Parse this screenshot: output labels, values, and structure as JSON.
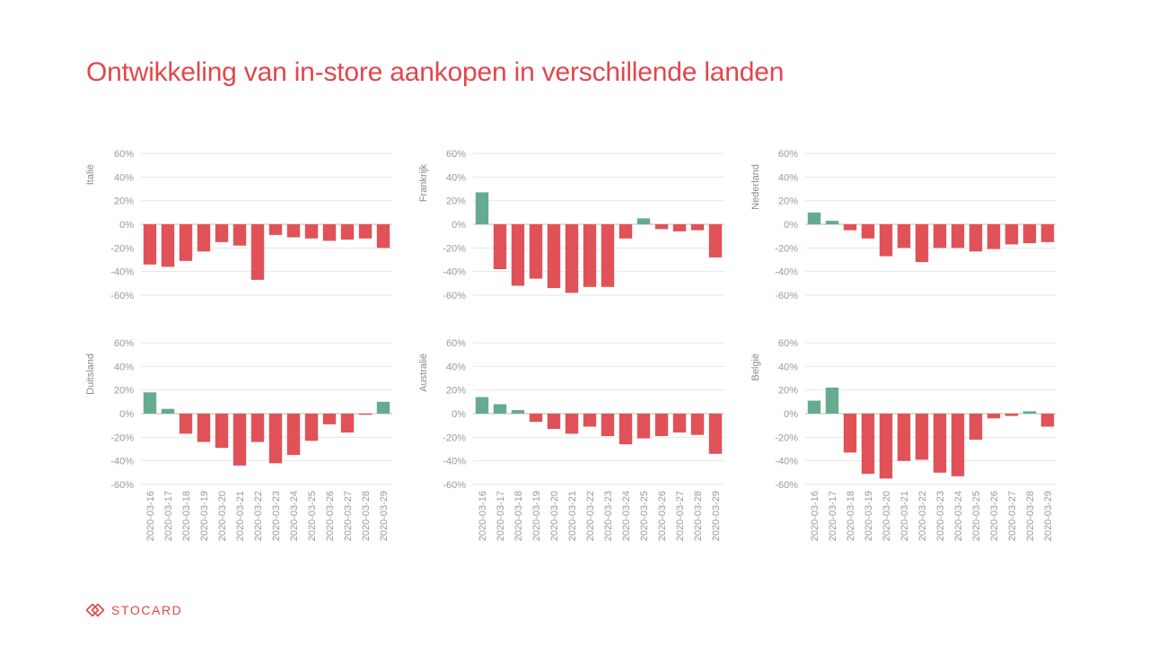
{
  "title": "Ontwikkeling van in-store aankopen in verschillende landen",
  "logo": {
    "text": "STOCARD",
    "icon": "stocard-logo-icon"
  },
  "colors": {
    "positive": "#66ab8f",
    "negative": "#e05257",
    "title": "#e0474c",
    "grid": "#e6e6e6",
    "axis_text": "#9a9a9a"
  },
  "chart_data": [
    {
      "type": "bar",
      "ylabel": "Italië",
      "categories": [
        "2020-03-16",
        "2020-03-17",
        "2020-03-18",
        "2020-03-19",
        "2020-03-20",
        "2020-03-21",
        "2020-03-22",
        "2020-03-23",
        "2020-03-24",
        "2020-03-25",
        "2020-03-26",
        "2020-03-27",
        "2020-03-28",
        "2020-03-29"
      ],
      "values": [
        -34,
        -36,
        -31,
        -23,
        -15,
        -18,
        -47,
        -9,
        -11,
        -12,
        -14,
        -13,
        -12,
        -20
      ],
      "ylim": [
        -60,
        60
      ],
      "yticks": [
        "60%",
        "40%",
        "20%",
        "0%",
        "-20%",
        "-40%",
        "-60%"
      ],
      "show_xticks": false
    },
    {
      "type": "bar",
      "ylabel": "Frankrijk",
      "categories": [
        "2020-03-16",
        "2020-03-17",
        "2020-03-18",
        "2020-03-19",
        "2020-03-20",
        "2020-03-21",
        "2020-03-22",
        "2020-03-23",
        "2020-03-24",
        "2020-03-25",
        "2020-03-26",
        "2020-03-27",
        "2020-03-28",
        "2020-03-29"
      ],
      "values": [
        27,
        -38,
        -52,
        -46,
        -54,
        -58,
        -53,
        -53,
        -12,
        5,
        -4,
        -6,
        -5,
        -28
      ],
      "ylim": [
        -60,
        60
      ],
      "yticks": [
        "60%",
        "40%",
        "20%",
        "0%",
        "-20%",
        "-40%",
        "-60%"
      ],
      "show_xticks": false
    },
    {
      "type": "bar",
      "ylabel": "Nederland",
      "categories": [
        "2020-03-16",
        "2020-03-17",
        "2020-03-18",
        "2020-03-19",
        "2020-03-20",
        "2020-03-21",
        "2020-03-22",
        "2020-03-23",
        "2020-03-24",
        "2020-03-25",
        "2020-03-26",
        "2020-03-27",
        "2020-03-28",
        "2020-03-29"
      ],
      "values": [
        10,
        3,
        -5,
        -12,
        -27,
        -20,
        -32,
        -20,
        -20,
        -23,
        -21,
        -17,
        -16,
        -15
      ],
      "ylim": [
        -60,
        60
      ],
      "yticks": [
        "60%",
        "40%",
        "20%",
        "0%",
        "-20%",
        "-40%",
        "-60%"
      ],
      "show_xticks": false
    },
    {
      "type": "bar",
      "ylabel": "Duitsland",
      "categories": [
        "2020-03-16",
        "2020-03-17",
        "2020-03-18",
        "2020-03-19",
        "2020-03-20",
        "2020-03-21",
        "2020-03-22",
        "2020-03-23",
        "2020-03-24",
        "2020-03-25",
        "2020-03-26",
        "2020-03-27",
        "2020-03-28",
        "2020-03-29"
      ],
      "values": [
        18,
        4,
        -17,
        -24,
        -29,
        -44,
        -24,
        -42,
        -35,
        -23,
        -9,
        -16,
        -1,
        10
      ],
      "ylim": [
        -60,
        60
      ],
      "yticks": [
        "60%",
        "40%",
        "20%",
        "0%",
        "-20%",
        "-40%",
        "-60%"
      ],
      "show_xticks": true
    },
    {
      "type": "bar",
      "ylabel": "Australië",
      "categories": [
        "2020-03-16",
        "2020-03-17",
        "2020-03-18",
        "2020-03-19",
        "2020-03-20",
        "2020-03-21",
        "2020-03-22",
        "2020-03-23",
        "2020-03-24",
        "2020-03-25",
        "2020-03-26",
        "2020-03-27",
        "2020-03-28",
        "2020-03-29"
      ],
      "values": [
        14,
        8,
        3,
        -7,
        -13,
        -17,
        -11,
        -19,
        -26,
        -21,
        -19,
        -16,
        -18,
        -34
      ],
      "ylim": [
        -60,
        60
      ],
      "yticks": [
        "60%",
        "40%",
        "20%",
        "0%",
        "-20%",
        "-40%",
        "-60%"
      ],
      "show_xticks": true
    },
    {
      "type": "bar",
      "ylabel": "België",
      "categories": [
        "2020-03-16",
        "2020-03-17",
        "2020-03-18",
        "2020-03-19",
        "2020-03-20",
        "2020-03-21",
        "2020-03-22",
        "2020-03-23",
        "2020-03-24",
        "2020-03-25",
        "2020-03-26",
        "2020-03-27",
        "2020-03-28",
        "2020-03-29"
      ],
      "values": [
        11,
        22,
        -33,
        -51,
        -55,
        -40,
        -39,
        -50,
        -53,
        -22,
        -4,
        -2,
        2,
        -11
      ],
      "ylim": [
        -60,
        60
      ],
      "yticks": [
        "60%",
        "40%",
        "20%",
        "0%",
        "-20%",
        "-40%",
        "-60%"
      ],
      "show_xticks": true
    }
  ]
}
